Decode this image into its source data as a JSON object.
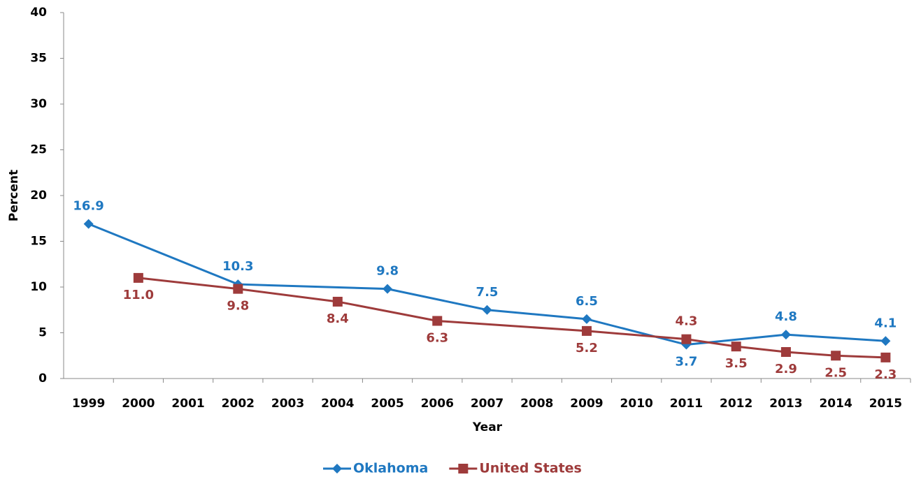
{
  "chart_data": {
    "type": "line",
    "x_label": "Year",
    "y_label": "Percent",
    "xlim": [
      1998.5,
      2015.5
    ],
    "xticks": [
      1999,
      2000,
      2001,
      2002,
      2003,
      2004,
      2005,
      2006,
      2007,
      2008,
      2009,
      2010,
      2011,
      2012,
      2013,
      2014,
      2015
    ],
    "ylim": [
      0,
      40
    ],
    "yticks": [
      0,
      5,
      10,
      15,
      20,
      25,
      30,
      35,
      40
    ],
    "grid": false,
    "legend": "bottom",
    "series": [
      {
        "name": "Oklahoma",
        "color": "#1f78c1",
        "marker": "diamond",
        "x": [
          1999,
          2002,
          2005,
          2007,
          2009,
          2011,
          2013,
          2015
        ],
        "values": [
          16.9,
          10.3,
          9.8,
          7.5,
          6.5,
          3.7,
          4.8,
          4.1
        ]
      },
      {
        "name": "United States",
        "color": "#9e3b3b",
        "marker": "square",
        "x": [
          2000,
          2002,
          2004,
          2006,
          2009,
          2011,
          2012,
          2013,
          2014,
          2015
        ],
        "values": [
          11.0,
          9.8,
          8.4,
          6.3,
          5.2,
          4.3,
          3.5,
          2.9,
          2.5,
          2.3
        ],
        "value_labels": [
          "11.0",
          "9.8",
          "8.4",
          "6.3",
          "5.2",
          "4.3",
          "3.5",
          "2.9",
          "2.5",
          "2.3"
        ]
      }
    ]
  }
}
